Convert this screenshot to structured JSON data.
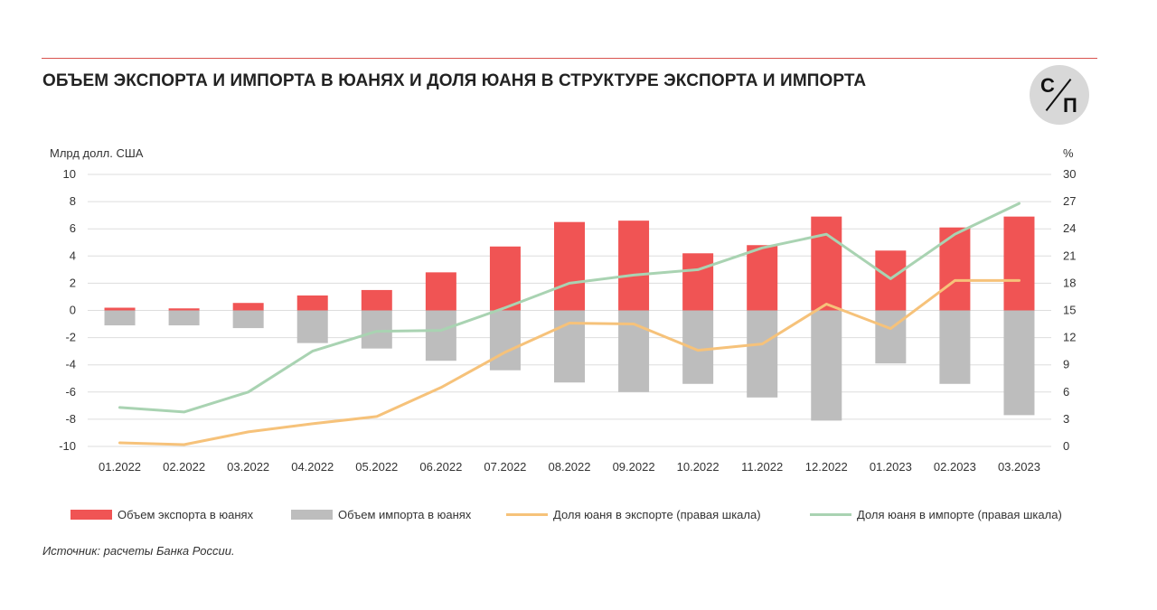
{
  "title": "ОБЪЕМ ЭКСПОРТА И ИМПОРТА В ЮАНЯХ И ДОЛЯ ЮАНЯ В СТРУКТУРЕ ЭКСПОРТА И ИМПОРТА",
  "logo": {
    "letter_top": "С",
    "letter_bottom": "П"
  },
  "source": "Источник: расчеты Банка России.",
  "colors": {
    "export_bar": "#f05454",
    "import_bar": "#bdbdbd",
    "export_share_line": "#f6c27a",
    "import_share_line": "#a9d3b2",
    "grid": "#dddddd",
    "rule": "#d9534f"
  },
  "chart_data": {
    "type": "bar",
    "categories": [
      "01.2022",
      "02.2022",
      "03.2022",
      "04.2022",
      "05.2022",
      "06.2022",
      "07.2022",
      "08.2022",
      "09.2022",
      "10.2022",
      "11.2022",
      "12.2022",
      "01.2023",
      "02.2023",
      "03.2023"
    ],
    "ylabel": "Млрд долл. США",
    "ylim": [
      -10,
      10
    ],
    "yticks": [
      10,
      8,
      6,
      4,
      2,
      0,
      -2,
      -4,
      -6,
      -8,
      -10
    ],
    "y2label": "%",
    "y2lim": [
      0,
      30
    ],
    "y2ticks": [
      30,
      27,
      24,
      21,
      18,
      15,
      12,
      9,
      6,
      3,
      0
    ],
    "grid": true,
    "legend_position": "bottom",
    "series": [
      {
        "name": "Объем экспорта в юанях",
        "type": "bar",
        "axis": "left",
        "values": [
          0.2,
          0.15,
          0.55,
          1.1,
          1.5,
          2.8,
          4.7,
          6.5,
          6.6,
          4.2,
          4.8,
          6.9,
          4.4,
          6.1,
          6.9
        ]
      },
      {
        "name": "Объем импорта в юанях",
        "type": "bar",
        "axis": "left",
        "values": [
          -1.1,
          -1.1,
          -1.3,
          -2.4,
          -2.8,
          -3.7,
          -4.4,
          -5.3,
          -6.0,
          -5.4,
          -6.4,
          -8.1,
          -3.9,
          -5.4,
          -7.7
        ]
      },
      {
        "name": "Доля юаня в экспорте (правая шкала)",
        "type": "line",
        "axis": "right",
        "values": [
          0.4,
          0.2,
          1.6,
          2.5,
          3.3,
          6.5,
          10.4,
          13.6,
          13.5,
          10.6,
          11.3,
          15.7,
          13.0,
          18.3,
          18.3
        ]
      },
      {
        "name": "Доля юаня в импорте (правая шкала)",
        "type": "line",
        "axis": "right",
        "values": [
          4.3,
          3.8,
          6.0,
          10.5,
          12.7,
          12.8,
          15.3,
          18.0,
          18.9,
          19.5,
          21.9,
          23.4,
          18.5,
          23.4,
          26.8
        ]
      }
    ]
  }
}
